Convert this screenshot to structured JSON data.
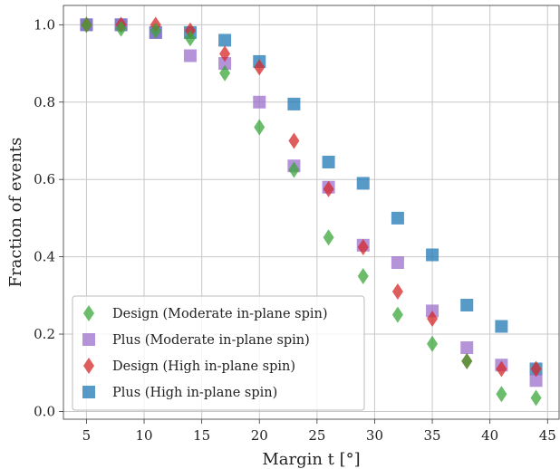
{
  "chart_data": {
    "type": "scatter",
    "xlabel": "Margin t [°]",
    "ylabel": "Fraction of events",
    "xlim": [
      3,
      46
    ],
    "ylim": [
      -0.02,
      1.05
    ],
    "xticks": [
      5,
      10,
      15,
      20,
      25,
      30,
      35,
      40,
      45
    ],
    "yticks": [
      0.0,
      0.2,
      0.4,
      0.6,
      0.8,
      1.0
    ],
    "xtick_labels": [
      "5",
      "10",
      "15",
      "20",
      "25",
      "30",
      "35",
      "40",
      "45"
    ],
    "ytick_labels": [
      "0.0",
      "0.2",
      "0.4",
      "0.6",
      "0.8",
      "1.0"
    ],
    "grid": true,
    "legend_position": "bottom-left",
    "series": [
      {
        "name": "Design (Moderate in-plane spin)",
        "marker": "diamond",
        "color": "#3aa53a",
        "x": [
          5,
          8,
          11,
          14,
          17,
          20,
          23,
          26,
          29,
          32,
          35,
          38,
          41,
          44
        ],
        "y": [
          1.0,
          0.99,
          0.985,
          0.965,
          0.875,
          0.735,
          0.625,
          0.45,
          0.35,
          0.25,
          0.175,
          0.13,
          0.045,
          0.035
        ]
      },
      {
        "name": "Plus (Moderate in-plane spin)",
        "marker": "square",
        "color": "#9b6fcc",
        "x": [
          5,
          8,
          11,
          14,
          17,
          20,
          23,
          26,
          29,
          32,
          35,
          38,
          41,
          44
        ],
        "y": [
          1.0,
          1.0,
          0.98,
          0.92,
          0.9,
          0.8,
          0.635,
          0.58,
          0.43,
          0.385,
          0.26,
          0.165,
          0.12,
          0.08
        ]
      },
      {
        "name": "Design (High in-plane spin)",
        "marker": "diamond",
        "color": "#d62728",
        "x": [
          5,
          8,
          11,
          14,
          17,
          20,
          23,
          26,
          29,
          32,
          35,
          38,
          41,
          44
        ],
        "y": [
          1.0,
          1.0,
          1.0,
          0.985,
          0.925,
          0.89,
          0.7,
          0.575,
          0.425,
          0.31,
          0.24,
          0.13,
          0.11,
          0.11
        ]
      },
      {
        "name": "Plus (High in-plane spin)",
        "marker": "square",
        "color": "#1f77b4",
        "x": [
          5,
          8,
          11,
          14,
          17,
          20,
          23,
          26,
          29,
          32,
          35,
          38,
          41,
          44
        ],
        "y": [
          1.0,
          1.0,
          0.98,
          0.98,
          0.96,
          0.905,
          0.795,
          0.645,
          0.59,
          0.5,
          0.405,
          0.275,
          0.22,
          0.11
        ]
      }
    ]
  }
}
